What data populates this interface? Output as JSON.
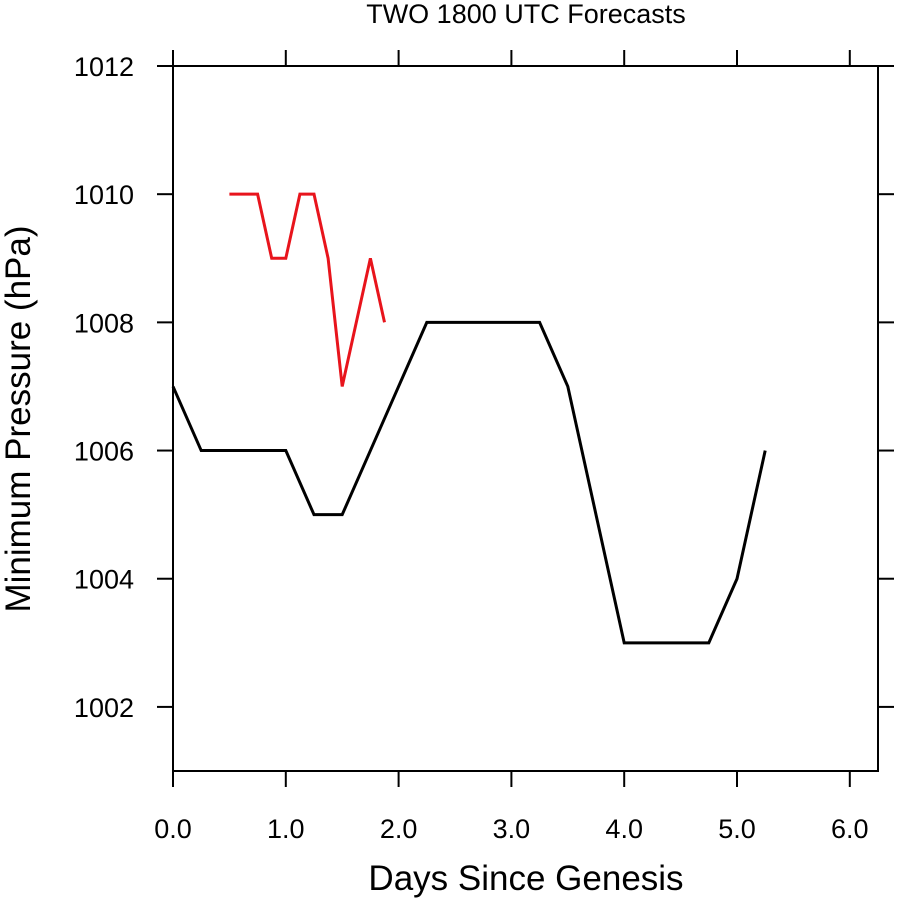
{
  "chart_data": {
    "type": "line",
    "title": "TWO 1800 UTC Forecasts",
    "xlabel": "Days Since Genesis",
    "ylabel": "Minimum Pressure (hPa)",
    "xlim": [
      0,
      6.25
    ],
    "ylim": [
      1001,
      1012
    ],
    "x_ticks": [
      0.0,
      1.0,
      2.0,
      3.0,
      4.0,
      5.0,
      6.0
    ],
    "x_tick_labels": [
      "0.0",
      "1.0",
      "2.0",
      "3.0",
      "4.0",
      "5.0",
      "6.0"
    ],
    "y_ticks": [
      1002,
      1004,
      1006,
      1008,
      1010,
      1012
    ],
    "y_tick_labels": [
      "1002",
      "1004",
      "1006",
      "1008",
      "1010",
      "1012"
    ],
    "grid": false,
    "legend": "none",
    "series": [
      {
        "color": "#000000",
        "x": [
          0.0,
          0.25,
          0.5,
          0.75,
          1.0,
          1.25,
          1.5,
          1.75,
          2.0,
          2.25,
          2.5,
          2.75,
          3.0,
          3.25,
          3.5,
          3.75,
          4.0,
          4.25,
          4.5,
          4.75,
          5.0,
          5.25
        ],
        "y": [
          1007,
          1006,
          1006,
          1006,
          1006,
          1005,
          1005,
          1006,
          1007,
          1008,
          1008,
          1008,
          1008,
          1008,
          1007,
          1005,
          1003,
          1003,
          1003,
          1003,
          1004,
          1006
        ]
      },
      {
        "color": "#e8141c",
        "x": [
          0.5,
          0.625,
          0.75,
          0.875,
          1.0,
          1.125,
          1.25,
          1.375,
          1.5,
          1.625,
          1.75,
          1.875
        ],
        "y": [
          1010,
          1010,
          1010,
          1009,
          1009,
          1010,
          1010,
          1009,
          1007,
          1008,
          1009,
          1008
        ]
      }
    ]
  }
}
